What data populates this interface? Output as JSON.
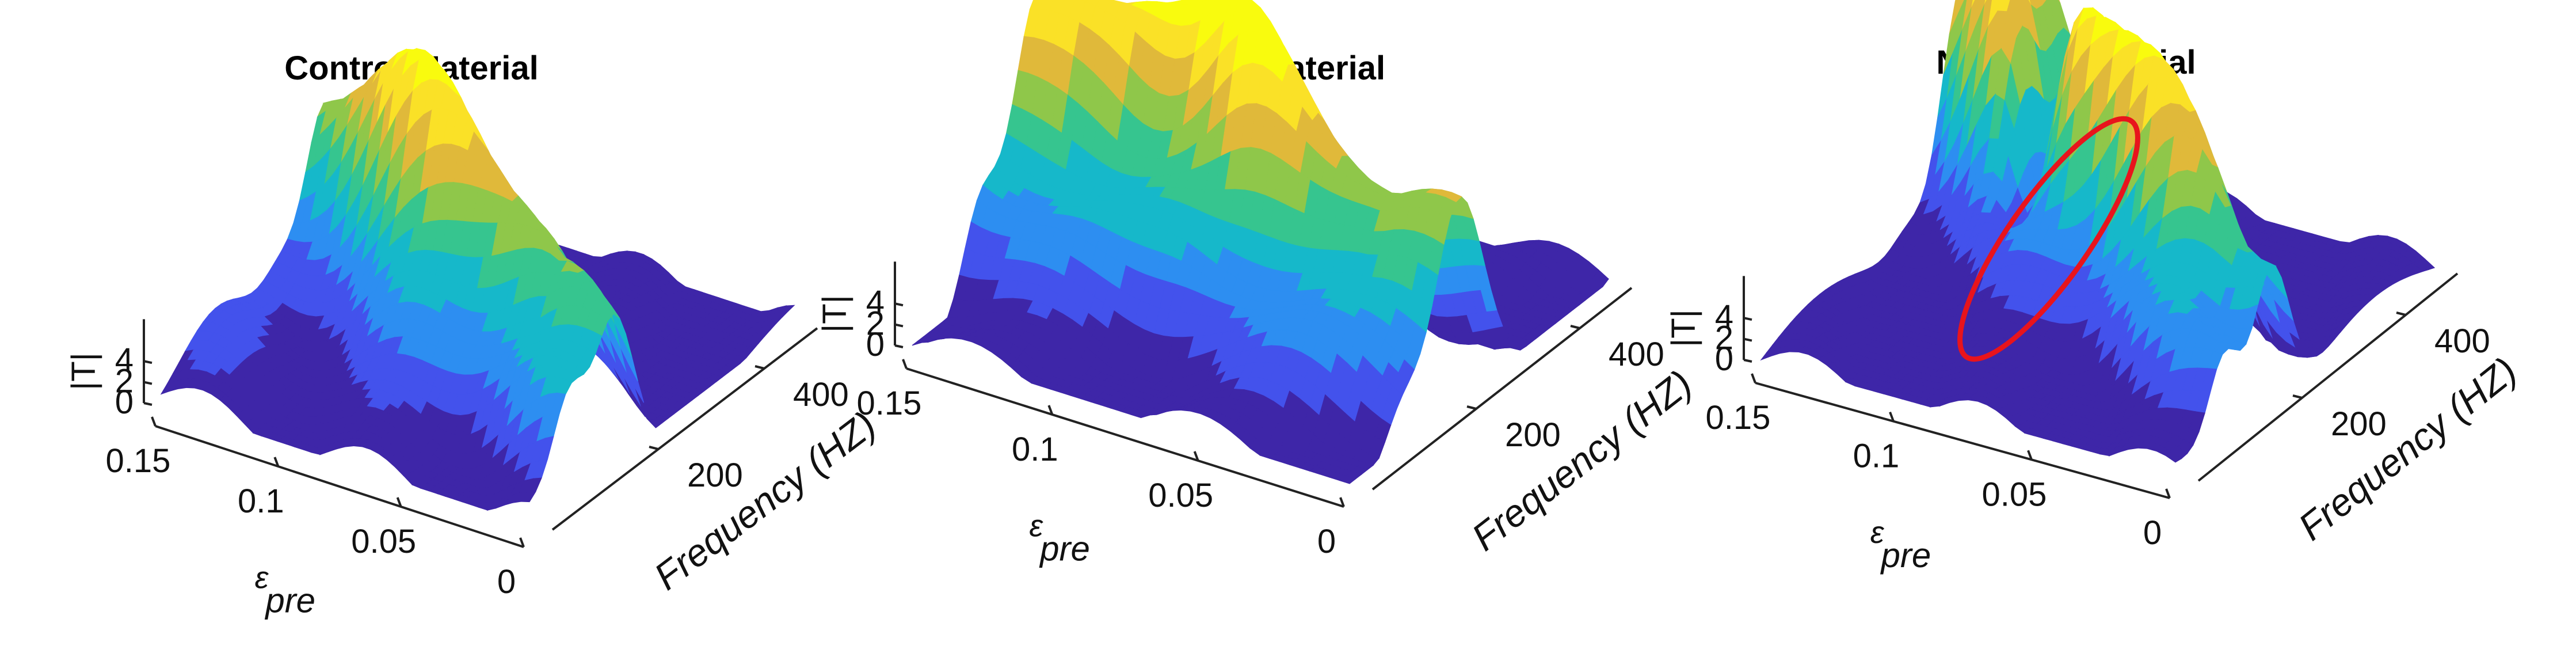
{
  "chart_data": [
    {
      "type": "surface",
      "title": "Control Material",
      "zlabel": "|T|",
      "xlabel": "ε_pre",
      "ylabel": "Frequency (HZ)",
      "x_ticks": [
        "0.15",
        "0.1",
        "0.05",
        "0"
      ],
      "y_ticks": [
        "200",
        "400"
      ],
      "z_ticks": [
        "0",
        "2",
        "4"
      ],
      "x_range": [
        0,
        0.15
      ],
      "y_range": [
        0,
        500
      ],
      "z_range": [
        0,
        4
      ],
      "colormap": [
        "#3e26a8",
        "#4352ec",
        "#2d8ef1",
        "#16b8ca",
        "#36c58f",
        "#8fc74a",
        "#e0b93a",
        "#fae127",
        "#f9fb0e"
      ],
      "peak_ridge": {
        "y_at_x_max": 250,
        "y_at_x_min": 120,
        "height": 3.6
      }
    },
    {
      "type": "surface",
      "title": "Voided Material",
      "zlabel": "|T|",
      "xlabel": "ε_pre",
      "ylabel": "Frequency (HZ)",
      "x_ticks": [
        "0.15",
        "0.1",
        "0.05",
        "0"
      ],
      "y_ticks": [
        "200",
        "400"
      ],
      "z_ticks": [
        "0",
        "2",
        "4"
      ],
      "x_range": [
        0,
        0.15
      ],
      "y_range": [
        0,
        500
      ],
      "z_range": [
        0,
        4
      ],
      "colormap": [
        "#3e26a8",
        "#4352ec",
        "#2d8ef1",
        "#16b8ca",
        "#36c58f",
        "#8fc74a",
        "#e0b93a",
        "#fae127",
        "#f9fb0e"
      ],
      "peak_ridge": {
        "y_at_x_max": 230,
        "y_at_x_min": 210,
        "height": 4.0
      }
    },
    {
      "type": "surface",
      "title": "NS Metamaterial",
      "zlabel": "|T|",
      "xlabel": "ε_pre",
      "ylabel": "Frequency (HZ)",
      "x_ticks": [
        "0.15",
        "0.1",
        "0.05",
        "0"
      ],
      "y_ticks": [
        "200",
        "400"
      ],
      "z_ticks": [
        "0",
        "2",
        "4"
      ],
      "x_range": [
        0,
        0.15
      ],
      "y_range": [
        0,
        500
      ],
      "z_range": [
        0,
        4
      ],
      "colormap": [
        "#3e26a8",
        "#4352ec",
        "#2d8ef1",
        "#16b8ca",
        "#36c58f",
        "#8fc74a",
        "#e0b93a",
        "#fae127",
        "#f9fb0e"
      ],
      "peak_ridge": {
        "y_at_x_max": 330,
        "y_at_x_min": 170,
        "height": 4.0
      },
      "annotation": {
        "shape": "ellipse",
        "color": "#e8141c"
      }
    }
  ]
}
